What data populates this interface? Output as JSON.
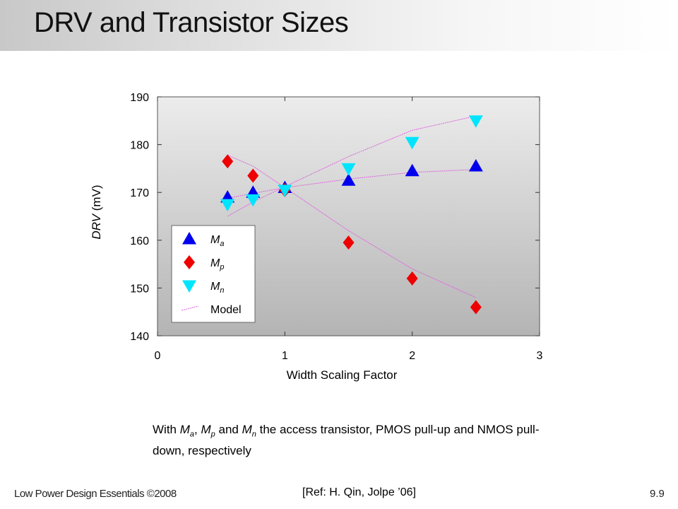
{
  "slide": {
    "title": "DRV and Transistor Sizes",
    "caption": {
      "prefix": "With ",
      "m1": "M",
      "m1_sub": "a",
      "sep1": ", ",
      "m2": "M",
      "m2_sub": "p",
      "sep2": " and ",
      "m3": "M",
      "m3_sub": "n",
      "rest": " the access transistor, PMOS pull-up and NMOS pull-down, respectively"
    },
    "footer_left": "Low Power Design Essentials ©2008",
    "footer_center": "[Ref: H. Qin, Jolpe ’06]",
    "footer_right": "9.9"
  },
  "colors": {
    "Ma": "#0000ee",
    "Mp": "#ee0000",
    "Mn": "#00e5ff",
    "model": "#e060e0"
  },
  "chart_data": {
    "type": "scatter",
    "xlabel": "Width Scaling Factor",
    "ylabel_var": "DRV",
    "ylabel_unit": " (mV)",
    "xlim": [
      0,
      3
    ],
    "ylim": [
      140,
      190
    ],
    "xticks": [
      "0",
      "1",
      "2",
      "3"
    ],
    "yticks": [
      "140",
      "150",
      "160",
      "170",
      "180",
      "190"
    ],
    "legend_position": "bottom-left",
    "series": [
      {
        "key": "Ma",
        "name": "M",
        "name_sub": "a",
        "marker": "triangle-up",
        "x": [
          0.55,
          0.75,
          1.0,
          1.5,
          2.0,
          2.5
        ],
        "y": [
          169,
          170,
          171,
          172.5,
          174.5,
          175.5
        ]
      },
      {
        "key": "Mp",
        "name": "M",
        "name_sub": "p",
        "marker": "diamond",
        "x": [
          0.55,
          0.75,
          1.0,
          1.5,
          2.0,
          2.5
        ],
        "y": [
          176.5,
          173.5,
          170.5,
          159.5,
          152,
          146
        ]
      },
      {
        "key": "Mn",
        "name": "M",
        "name_sub": "n",
        "marker": "triangle-down",
        "x": [
          0.55,
          0.75,
          1.0,
          1.5,
          2.0,
          2.5
        ],
        "y": [
          167.5,
          168.5,
          170.5,
          175,
          180.5,
          185
        ]
      }
    ],
    "model": {
      "name": "Model",
      "lines": [
        {
          "x": [
            0.55,
            0.75,
            1.0,
            1.5,
            2.0,
            2.5
          ],
          "y": [
            168.8,
            169.8,
            171,
            172.8,
            174.2,
            174.8
          ]
        },
        {
          "x": [
            0.55,
            0.75,
            1.0,
            1.5,
            2.0,
            2.5
          ],
          "y": [
            177.8,
            175.5,
            171,
            162,
            154,
            148
          ]
        },
        {
          "x": [
            0.55,
            0.75,
            1.0,
            1.5,
            2.0,
            2.5
          ],
          "y": [
            165,
            168,
            171.2,
            177.5,
            183,
            186
          ]
        }
      ]
    }
  }
}
